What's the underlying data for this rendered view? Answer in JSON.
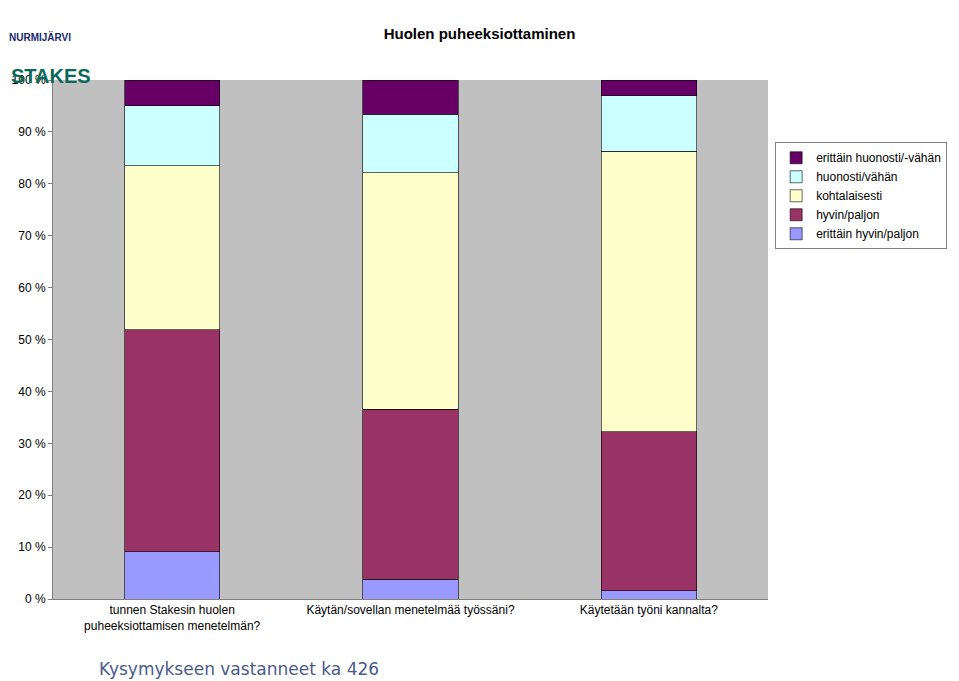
{
  "chart_data": {
    "type": "bar",
    "title": "Huolen puheeksiottaminen",
    "categories": [
      "tunnen Stakesin huolen puheeksiottamisen menetelmän?",
      "Käytän/sovellan menetelmää työssäni?",
      "Käytetään työni kannalta?"
    ],
    "series": [
      {
        "name": "erittäin hyvin/paljon",
        "color": "#9999ff",
        "values": [
          9.1,
          3.8,
          1.6
        ]
      },
      {
        "name": "hyvin/paljon",
        "color": "#993366",
        "values": [
          42.8,
          32.8,
          30.6
        ]
      },
      {
        "name": "kohtalaisesti",
        "color": "#ffffcc",
        "values": [
          31.6,
          45.5,
          54.1
        ]
      },
      {
        "name": "huonosti/vähän",
        "color": "#ccffff",
        "values": [
          11.5,
          11.3,
          10.7
        ]
      },
      {
        "name": "erittäin huonosti/-vähän",
        "color": "#660066",
        "values": [
          5.0,
          6.6,
          3.0
        ]
      }
    ],
    "stacked": true,
    "ylim": [
      0,
      100
    ],
    "yticks": [
      {
        "value": 0,
        "label": "0 %"
      },
      {
        "value": 10,
        "label": "10 %"
      },
      {
        "value": 20,
        "label": "20 %"
      },
      {
        "value": 30,
        "label": "30 %"
      },
      {
        "value": 40,
        "label": "40 %"
      },
      {
        "value": 50,
        "label": "50 %"
      },
      {
        "value": 60,
        "label": "60 %"
      },
      {
        "value": 70,
        "label": "70 %"
      },
      {
        "value": 80,
        "label": "80 %"
      },
      {
        "value": 90,
        "label": "90 %"
      },
      {
        "value": 100,
        "label": "100 %"
      }
    ],
    "grid": false,
    "legend": "right",
    "annotations": [
      {
        "text": "Kysymykseen vastanneet ka 426"
      },
      {
        "text": "NURMIJÄRVI"
      },
      {
        "text": "STAKES"
      }
    ]
  }
}
